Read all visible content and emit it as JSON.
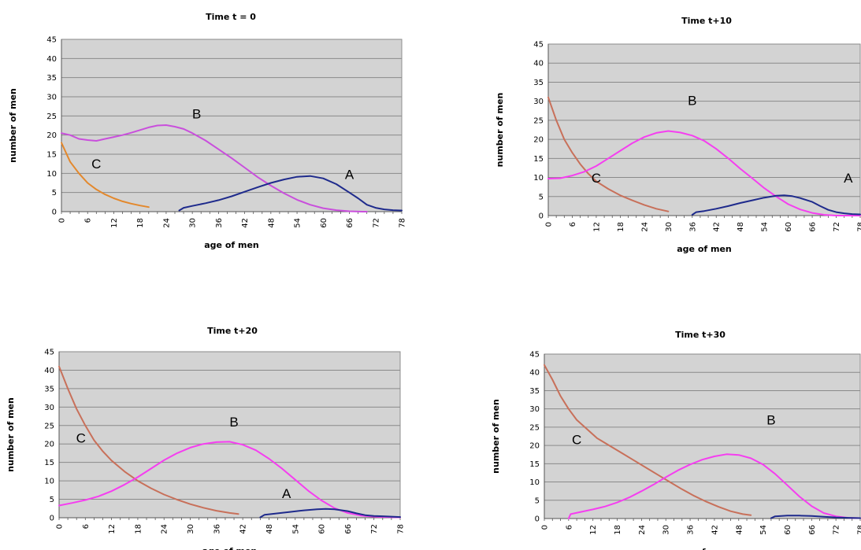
{
  "chart_data": [
    {
      "type": "line",
      "title": "Time t = 0",
      "xlabel": "age of men",
      "ylabel": "number of men",
      "xlim": [
        0,
        78
      ],
      "ylim": [
        0,
        45
      ],
      "x_ticks": [
        0,
        6,
        12,
        18,
        24,
        30,
        36,
        42,
        48,
        54,
        60,
        66,
        72,
        78
      ],
      "y_ticks": [
        0,
        5,
        10,
        15,
        20,
        25,
        30,
        35,
        40,
        45
      ],
      "grid": true,
      "series": [
        {
          "color": "#e3882c",
          "x": [
            0,
            2,
            4,
            6,
            8,
            10,
            12,
            14,
            16,
            18,
            20
          ],
          "y": [
            18,
            13,
            10,
            7.5,
            5.8,
            4.5,
            3.5,
            2.7,
            2.1,
            1.6,
            1.2
          ]
        },
        {
          "color": "#c94fdc",
          "x": [
            0,
            2,
            4,
            6,
            8,
            10,
            12,
            14,
            16,
            18,
            20,
            22,
            24,
            26,
            28,
            30,
            33,
            36,
            39,
            42,
            45,
            48,
            51,
            54,
            57,
            60,
            63,
            66,
            69,
            70
          ],
          "y": [
            20.5,
            20,
            19,
            18.7,
            18.5,
            19,
            19.5,
            20,
            20.6,
            21.3,
            22,
            22.5,
            22.6,
            22.2,
            21.6,
            20.5,
            18.6,
            16.3,
            14,
            11.5,
            9,
            6.8,
            4.8,
            3.1,
            1.8,
            0.9,
            0.4,
            0.1,
            0,
            0
          ]
        },
        {
          "color": "#1e2a8c",
          "x": [
            27,
            28,
            30,
            33,
            36,
            39,
            42,
            45,
            48,
            51,
            54,
            57,
            60,
            63,
            66,
            68,
            70,
            72,
            74,
            76,
            78
          ],
          "y": [
            0.3,
            1,
            1.5,
            2.2,
            3,
            4,
            5.2,
            6.4,
            7.5,
            8.4,
            9.1,
            9.3,
            8.7,
            7.2,
            5,
            3.5,
            1.8,
            1,
            0.6,
            0.4,
            0.3
          ]
        }
      ],
      "annotations": [
        {
          "text": "A",
          "x": 66,
          "y": 8.5
        },
        {
          "text": "B",
          "x": 31,
          "y": 24.3
        },
        {
          "text": "C",
          "x": 8,
          "y": 11.3
        }
      ]
    },
    {
      "type": "line",
      "title": "Time t+10",
      "xlabel": "age of men",
      "ylabel": "number of men",
      "xlim": [
        0,
        78
      ],
      "ylim": [
        0,
        45
      ],
      "x_ticks": [
        0,
        6,
        12,
        18,
        24,
        30,
        36,
        42,
        48,
        54,
        60,
        66,
        72,
        78
      ],
      "y_ticks": [
        0,
        5,
        10,
        15,
        20,
        25,
        30,
        35,
        40,
        45
      ],
      "grid": true,
      "series": [
        {
          "color": "#c8705a",
          "x": [
            0,
            2,
            4,
            6,
            8,
            10,
            12,
            15,
            18,
            21,
            24,
            27,
            30
          ],
          "y": [
            31,
            25,
            20,
            16.5,
            13.5,
            11,
            9,
            7,
            5.3,
            4,
            2.8,
            1.8,
            1.1
          ]
        },
        {
          "color": "#f53ef0",
          "x": [
            0,
            3,
            6,
            9,
            12,
            15,
            18,
            21,
            24,
            27,
            30,
            33,
            36,
            39,
            42,
            45,
            48,
            51,
            54,
            57,
            60,
            63,
            66,
            69,
            72,
            75,
            78
          ],
          "y": [
            9.7,
            9.8,
            10.5,
            11.5,
            13,
            15,
            17,
            19,
            20.6,
            21.7,
            22.2,
            21.8,
            21,
            19.6,
            17.5,
            15,
            12.3,
            9.8,
            7.2,
            5,
            3,
            1.6,
            0.7,
            0.2,
            0,
            0,
            0
          ]
        },
        {
          "color": "#1e2a8c",
          "x": [
            36,
            37,
            39,
            42,
            45,
            48,
            51,
            54,
            57,
            59,
            61,
            63,
            66,
            68,
            70,
            72,
            74,
            76,
            78
          ],
          "y": [
            0.2,
            0.9,
            1.2,
            1.8,
            2.5,
            3.3,
            4,
            4.7,
            5.2,
            5.3,
            5.1,
            4.6,
            3.6,
            2.5,
            1.5,
            0.9,
            0.6,
            0.4,
            0.3
          ]
        }
      ],
      "annotations": [
        {
          "text": "A",
          "x": 75,
          "y": 8.7
        },
        {
          "text": "B",
          "x": 36,
          "y": 29
        },
        {
          "text": "C",
          "x": 12,
          "y": 8.7
        }
      ]
    },
    {
      "type": "line",
      "title": "Time t+20",
      "xlabel": "age of men",
      "ylabel": "number of men",
      "xlim": [
        0,
        78
      ],
      "ylim": [
        0,
        45
      ],
      "x_ticks": [
        0,
        6,
        12,
        18,
        24,
        30,
        36,
        42,
        48,
        54,
        60,
        66,
        72,
        78
      ],
      "y_ticks": [
        0,
        5,
        10,
        15,
        20,
        25,
        30,
        35,
        40,
        45
      ],
      "grid": true,
      "series": [
        {
          "color": "#c8705a",
          "x": [
            0,
            2,
            4,
            6,
            8,
            10,
            12,
            15,
            18,
            21,
            24,
            27,
            30,
            33,
            36,
            39,
            41
          ],
          "y": [
            41,
            35,
            29.5,
            25,
            21,
            18,
            15.5,
            12.5,
            10,
            8,
            6.3,
            4.9,
            3.7,
            2.7,
            1.9,
            1.3,
            1
          ]
        },
        {
          "color": "#f53ef0",
          "x": [
            0,
            3,
            6,
            9,
            12,
            15,
            18,
            21,
            24,
            27,
            30,
            33,
            36,
            39,
            42,
            45,
            48,
            51,
            54,
            57,
            60,
            63,
            66,
            69,
            72,
            75,
            78
          ],
          "y": [
            3.3,
            4,
            4.8,
            5.8,
            7.2,
            9,
            11,
            13.3,
            15.6,
            17.5,
            19,
            20,
            20.5,
            20.6,
            19.8,
            18.3,
            16,
            13.3,
            10.3,
            7.3,
            4.7,
            2.6,
            1.3,
            0.6,
            0.3,
            0.2,
            0.1
          ]
        },
        {
          "color": "#1e2a8c",
          "x": [
            46,
            47,
            50,
            53,
            56,
            59,
            61,
            63,
            66,
            68,
            70,
            72,
            74,
            76,
            78
          ],
          "y": [
            0.1,
            0.8,
            1.2,
            1.6,
            2,
            2.3,
            2.4,
            2.3,
            1.8,
            1.2,
            0.7,
            0.5,
            0.4,
            0.3,
            0.2
          ]
        }
      ],
      "annotations": [
        {
          "text": "A",
          "x": 52,
          "y": 5.3
        },
        {
          "text": "B",
          "x": 40,
          "y": 24.7
        },
        {
          "text": "C",
          "x": 5,
          "y": 20.4
        }
      ]
    },
    {
      "type": "line",
      "title": "Time t+30",
      "xlabel": "age of men",
      "ylabel": "number of men",
      "xlim": [
        0,
        78
      ],
      "ylim": [
        0,
        45
      ],
      "x_ticks": [
        0,
        6,
        12,
        18,
        24,
        30,
        36,
        42,
        48,
        54,
        60,
        66,
        72,
        78
      ],
      "y_ticks": [
        0,
        5,
        10,
        15,
        20,
        25,
        30,
        35,
        40,
        45
      ],
      "grid": true,
      "series": [
        {
          "color": "#c8705a",
          "x": [
            0,
            2,
            4,
            6,
            8,
            10,
            13,
            16,
            19,
            22,
            25,
            28,
            31,
            34,
            37,
            40,
            43,
            46,
            49,
            51
          ],
          "y": [
            42,
            38,
            33.5,
            30,
            27,
            25,
            22,
            20,
            18,
            16,
            14,
            12,
            10,
            8,
            6.2,
            4.6,
            3.2,
            2,
            1.2,
            0.9
          ]
        },
        {
          "color": "#f53ef0",
          "x": [
            6,
            6.5,
            9,
            12,
            15,
            18,
            21,
            24,
            27,
            30,
            33,
            36,
            39,
            42,
            45,
            48,
            51,
            54,
            57,
            60,
            63,
            66,
            69,
            72,
            75,
            78
          ],
          "y": [
            0,
            1.2,
            1.8,
            2.5,
            3.3,
            4.4,
            5.8,
            7.5,
            9.3,
            11.3,
            13.2,
            14.8,
            16.1,
            17,
            17.6,
            17.4,
            16.5,
            14.8,
            12.2,
            9.1,
            6,
            3.4,
            1.5,
            0.6,
            0.2,
            0.1
          ]
        },
        {
          "color": "#1e2a8c",
          "x": [
            56,
            57,
            60,
            63,
            66,
            69,
            72,
            75,
            78
          ],
          "y": [
            0.1,
            0.6,
            0.8,
            0.8,
            0.7,
            0.5,
            0.3,
            0.2,
            0.1
          ]
        }
      ],
      "annotations": [
        {
          "text": "B",
          "x": 56,
          "y": 25.7
        },
        {
          "text": "C",
          "x": 8,
          "y": 20.4
        }
      ]
    }
  ]
}
